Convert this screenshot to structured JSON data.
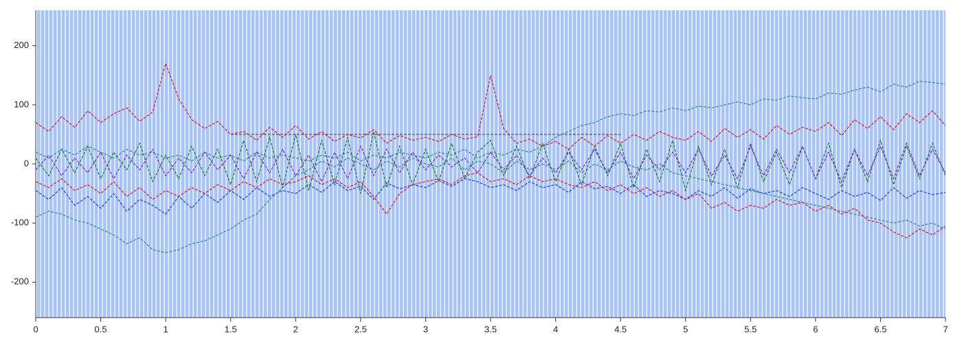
{
  "chart_data": {
    "type": "line",
    "xlim": [
      0,
      7
    ],
    "xticks": [
      0,
      0.5,
      1,
      1.5,
      2,
      2.5,
      3,
      3.5,
      4,
      4.5,
      5,
      5.5,
      6,
      6.5,
      7
    ],
    "ylim": [
      -260,
      260
    ],
    "yticks": [
      -200,
      -100,
      0,
      100,
      200
    ],
    "x": [
      0,
      0.1,
      0.2,
      0.3,
      0.4,
      0.5,
      0.6,
      0.7,
      0.8,
      0.9,
      1,
      1.1,
      1.2,
      1.3,
      1.4,
      1.5,
      1.6,
      1.7,
      1.8,
      1.9,
      2,
      2.1,
      2.2,
      2.3,
      2.4,
      2.5,
      2.6,
      2.7,
      2.8,
      2.9,
      3,
      3.1,
      3.2,
      3.3,
      3.4,
      3.5,
      3.6,
      3.7,
      3.8,
      3.9,
      4,
      4.1,
      4.2,
      4.3,
      4.4,
      4.5,
      4.6,
      4.7,
      4.8,
      4.9,
      5,
      5.1,
      5.2,
      5.3,
      5.4,
      5.5,
      5.6,
      5.7,
      5.8,
      5.9,
      6,
      6.1,
      6.2,
      6.3,
      6.4,
      6.5,
      6.6,
      6.7,
      6.8,
      6.9,
      7
    ],
    "series": [
      {
        "color": "#e8102a",
        "values": [
          70,
          55,
          80,
          62,
          90,
          70,
          85,
          95,
          72,
          88,
          170,
          110,
          75,
          60,
          72,
          50,
          55,
          40,
          62,
          45,
          65,
          42,
          55,
          38,
          50,
          44,
          58,
          35,
          48,
          40,
          45,
          38,
          50,
          42,
          46,
          150,
          60,
          35,
          42,
          30,
          38,
          25,
          45,
          30,
          48,
          35,
          50,
          40,
          55,
          45,
          40,
          55,
          38,
          60,
          45,
          58,
          42,
          65,
          50,
          62,
          55,
          70,
          48,
          75,
          60,
          80,
          58,
          85,
          70,
          90,
          65
        ]
      },
      {
        "color": "#1f3cff",
        "values": [
          -45,
          -60,
          -40,
          -70,
          -55,
          -75,
          -50,
          -80,
          -60,
          -70,
          -85,
          -55,
          -75,
          -50,
          -65,
          -45,
          -60,
          -40,
          -55,
          -45,
          -50,
          -35,
          -48,
          -30,
          -45,
          -38,
          -60,
          -32,
          -42,
          -35,
          -40,
          -28,
          -38,
          -25,
          -30,
          -40,
          -35,
          -45,
          -30,
          -40,
          -35,
          -48,
          -30,
          -42,
          -38,
          -50,
          -35,
          -55,
          -45,
          -50,
          -60,
          -45,
          -55,
          -40,
          -58,
          -42,
          -50,
          -45,
          -55,
          -40,
          -50,
          -60,
          -45,
          -55,
          -48,
          -62,
          -40,
          -58,
          -45,
          -52,
          -48
        ]
      },
      {
        "color": "#2a8c8c",
        "values": [
          20,
          10,
          25,
          15,
          30,
          20,
          10,
          25,
          15,
          20,
          10,
          15,
          5,
          20,
          10,
          15,
          5,
          20,
          10,
          15,
          10,
          5,
          15,
          10,
          20,
          5,
          15,
          10,
          20,
          15,
          10,
          20,
          15,
          25,
          10,
          20,
          15,
          25,
          20,
          30,
          45,
          55,
          65,
          70,
          80,
          85,
          82,
          90,
          88,
          95,
          90,
          98,
          95,
          100,
          105,
          100,
          110,
          108,
          115,
          112,
          110,
          120,
          118,
          125,
          130,
          122,
          135,
          130,
          140,
          138,
          135
        ]
      },
      {
        "color": "#2a8c8c",
        "values": [
          -90,
          -80,
          -85,
          -95,
          -100,
          -110,
          -120,
          -135,
          -125,
          -145,
          -150,
          -145,
          -135,
          -130,
          -120,
          -110,
          -95,
          -85,
          -60,
          -40,
          -20,
          -10,
          5,
          -5,
          10,
          0,
          -10,
          5,
          -5,
          10,
          0,
          -5,
          10,
          -10,
          5,
          0,
          -15,
          5,
          -10,
          0,
          -10,
          5,
          -15,
          0,
          -10,
          5,
          -5,
          -10,
          0,
          -15,
          -20,
          -25,
          -30,
          -35,
          -40,
          -45,
          -50,
          -55,
          -60,
          -65,
          -70,
          -75,
          -80,
          -85,
          -90,
          -95,
          -100,
          -95,
          -105,
          -100,
          -110
        ]
      },
      {
        "color": "#1b7a2a",
        "values": [
          10,
          -20,
          25,
          -15,
          30,
          -25,
          20,
          -10,
          35,
          -30,
          15,
          -25,
          30,
          -20,
          25,
          -35,
          40,
          -30,
          45,
          -40,
          50,
          -45,
          40,
          -35,
          45,
          -50,
          55,
          -40,
          30,
          -35,
          25,
          -30,
          35,
          -25,
          20,
          40,
          -20,
          30,
          -25,
          35,
          -30,
          25,
          -35,
          30,
          -20,
          35,
          -40,
          25,
          -30,
          40,
          -45,
          30,
          -35,
          25,
          -40,
          35,
          -30,
          20,
          -35,
          30,
          -25,
          35,
          -40,
          25,
          -30,
          40,
          -35,
          30,
          -25,
          35,
          -20
        ]
      },
      {
        "color": "#7a2ad8",
        "values": [
          -10,
          15,
          -20,
          10,
          -15,
          20,
          -25,
          15,
          -10,
          25,
          -20,
          10,
          -15,
          20,
          -10,
          15,
          -25,
          20,
          -15,
          25,
          -20,
          15,
          -30,
          20,
          -25,
          30,
          -20,
          25,
          -15,
          20,
          -10,
          15,
          -5,
          10,
          -15,
          20,
          -10,
          15,
          -20,
          10,
          -15,
          20,
          -10,
          25,
          -15,
          20,
          -25,
          15,
          -10,
          20,
          -15,
          25,
          -20,
          15,
          -25,
          30,
          -20,
          25,
          -15,
          30,
          -25,
          20,
          -30,
          25,
          -20,
          30,
          -25,
          35,
          -20,
          25,
          -15
        ]
      },
      {
        "color": "#e8102a",
        "values": [
          -30,
          -40,
          -25,
          -45,
          -35,
          -50,
          -30,
          -55,
          -40,
          -60,
          -45,
          -55,
          -40,
          -50,
          -35,
          -45,
          -30,
          -40,
          -25,
          -35,
          -30,
          -20,
          -35,
          -25,
          -40,
          -30,
          -55,
          -85,
          -50,
          -35,
          -30,
          -25,
          -35,
          -20,
          -15,
          -30,
          -25,
          -35,
          -20,
          -30,
          -25,
          -35,
          -40,
          -30,
          -45,
          -35,
          -50,
          -40,
          -55,
          -45,
          -60,
          -50,
          -75,
          -65,
          -80,
          -70,
          -75,
          -60,
          -70,
          -65,
          -80,
          -70,
          -85,
          -75,
          -95,
          -100,
          -115,
          -125,
          -110,
          -120,
          -105
        ]
      },
      {
        "color": "#555555",
        "values": [
          null,
          null,
          null,
          null,
          null,
          null,
          null,
          null,
          null,
          null,
          null,
          null,
          null,
          null,
          null,
          50,
          50,
          50,
          50,
          50,
          50,
          50,
          50,
          50,
          50,
          50,
          50,
          50,
          50,
          50,
          50,
          50,
          50,
          50,
          50,
          50,
          50,
          50,
          50,
          50,
          50,
          50,
          50,
          50,
          50,
          50,
          null,
          null,
          null,
          null,
          null,
          null,
          null,
          null,
          null,
          null,
          null,
          null,
          null,
          null,
          null,
          null,
          null,
          null,
          null,
          null,
          null,
          null,
          null,
          null,
          null
        ]
      }
    ]
  }
}
